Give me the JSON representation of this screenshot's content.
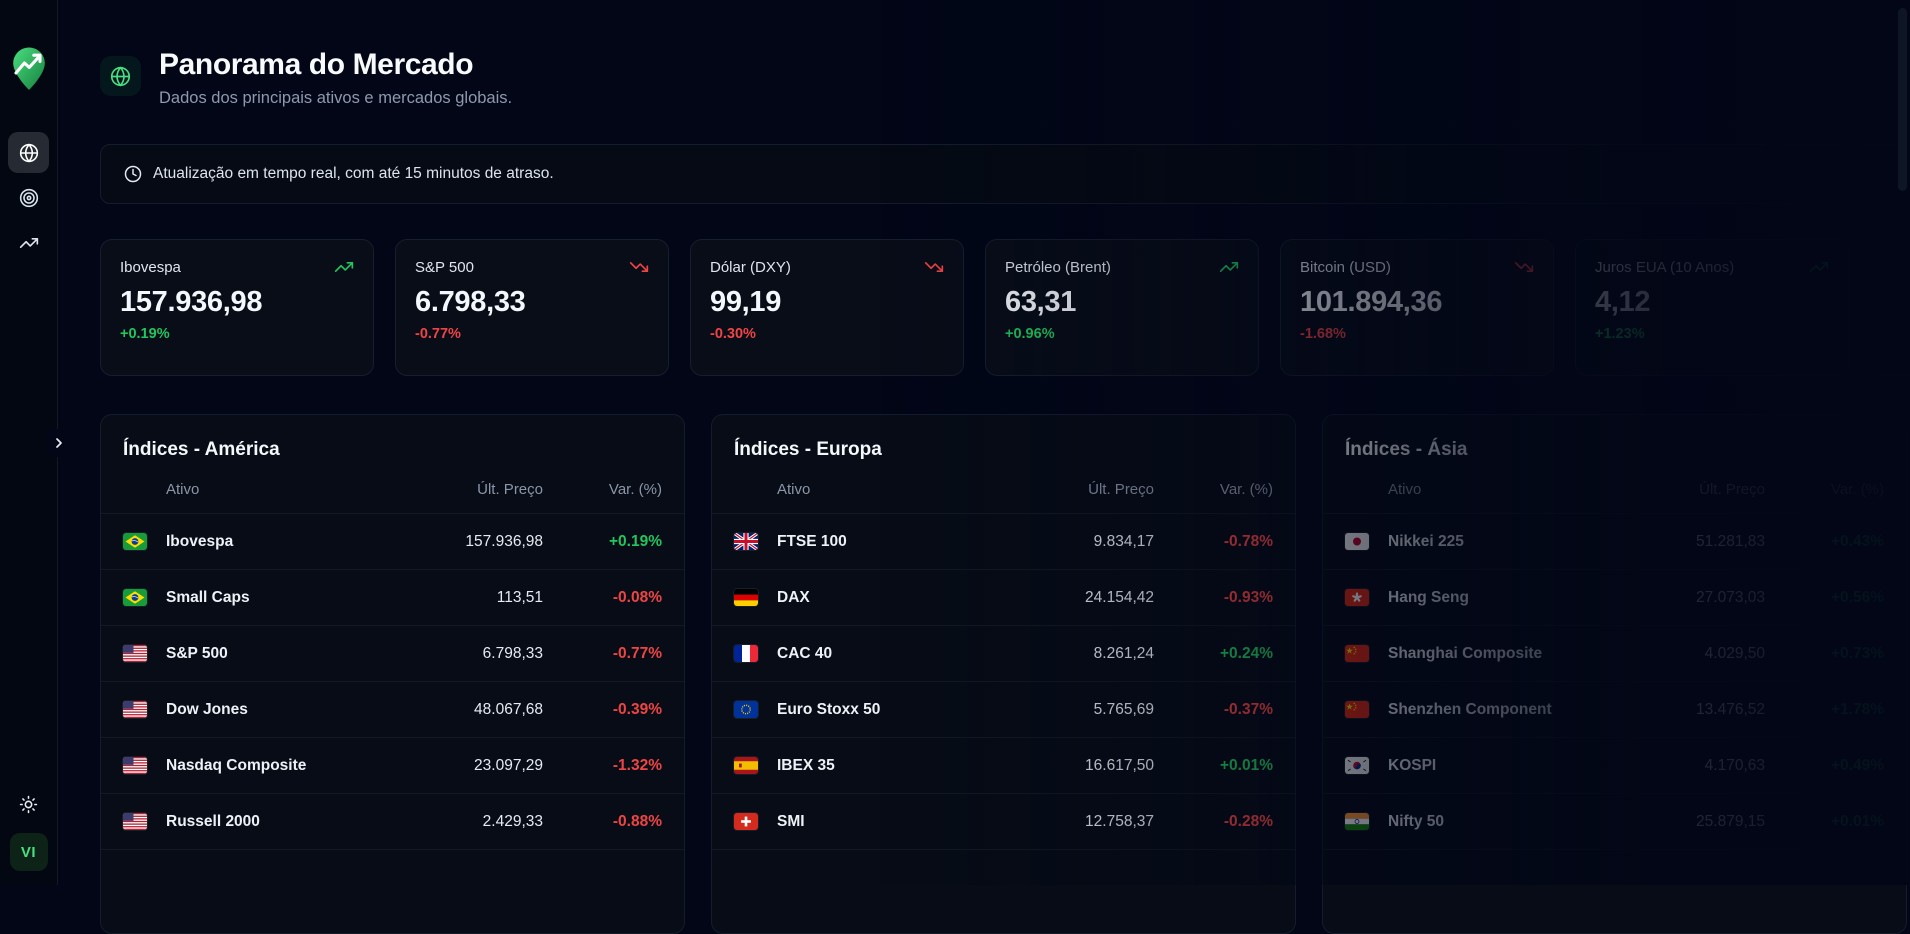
{
  "sidebar": {
    "logo_icon": "trend-pin-logo",
    "nav_items": [
      {
        "name": "globe",
        "active": true
      },
      {
        "name": "target",
        "active": false
      },
      {
        "name": "trending-up",
        "active": false
      }
    ],
    "collapse_icon": "chevron-right",
    "theme_icon": "sun",
    "avatar_label": "VI"
  },
  "header": {
    "icon": "globe-icon",
    "title": "Panorama do Mercado",
    "subtitle": "Dados dos principais ativos e mercados globais."
  },
  "notice": {
    "icon": "clock-icon",
    "text": "Atualização em tempo real, com até 15 minutos de atraso."
  },
  "summary_cards": [
    {
      "title": "Ibovespa",
      "value": "157.936,98",
      "change": "+0.19%",
      "direction": "up"
    },
    {
      "title": "S&P 500",
      "value": "6.798,33",
      "change": "-0.77%",
      "direction": "down"
    },
    {
      "title": "Dólar (DXY)",
      "value": "99,19",
      "change": "-0.30%",
      "direction": "down"
    },
    {
      "title": "Petróleo (Brent)",
      "value": "63,31",
      "change": "+0.96%",
      "direction": "up"
    },
    {
      "title": "Bitcoin (USD)",
      "value": "101.894,36",
      "change": "-1.68%",
      "direction": "down"
    },
    {
      "title": "Juros EUA (10 Anos)",
      "value": "4,12",
      "change": "+1.23%",
      "direction": "up"
    }
  ],
  "tables": [
    {
      "title": "Índices - América",
      "columns": [
        "Ativo",
        "Últ. Preço",
        "Var. (%)"
      ],
      "rows": [
        {
          "flag": "br",
          "name": "Ibovespa",
          "price": "157.936,98",
          "change": "+0.19%",
          "direction": "up"
        },
        {
          "flag": "br",
          "name": "Small Caps",
          "price": "113,51",
          "change": "-0.08%",
          "direction": "down"
        },
        {
          "flag": "us",
          "name": "S&P 500",
          "price": "6.798,33",
          "change": "-0.77%",
          "direction": "down"
        },
        {
          "flag": "us",
          "name": "Dow Jones",
          "price": "48.067,68",
          "change": "-0.39%",
          "direction": "down"
        },
        {
          "flag": "us",
          "name": "Nasdaq Composite",
          "price": "23.097,29",
          "change": "-1.32%",
          "direction": "down"
        },
        {
          "flag": "us",
          "name": "Russell 2000",
          "price": "2.429,33",
          "change": "-0.88%",
          "direction": "down"
        }
      ]
    },
    {
      "title": "Índices - Europa",
      "columns": [
        "Ativo",
        "Últ. Preço",
        "Var. (%)"
      ],
      "rows": [
        {
          "flag": "gb",
          "name": "FTSE 100",
          "price": "9.834,17",
          "change": "-0.78%",
          "direction": "down"
        },
        {
          "flag": "de",
          "name": "DAX",
          "price": "24.154,42",
          "change": "-0.93%",
          "direction": "down"
        },
        {
          "flag": "fr",
          "name": "CAC 40",
          "price": "8.261,24",
          "change": "+0.24%",
          "direction": "up"
        },
        {
          "flag": "eu",
          "name": "Euro Stoxx 50",
          "price": "5.765,69",
          "change": "-0.37%",
          "direction": "down"
        },
        {
          "flag": "es",
          "name": "IBEX 35",
          "price": "16.617,50",
          "change": "+0.01%",
          "direction": "up"
        },
        {
          "flag": "ch",
          "name": "SMI",
          "price": "12.758,37",
          "change": "-0.28%",
          "direction": "down"
        }
      ]
    },
    {
      "title": "Índices - Ásia",
      "columns": [
        "Ativo",
        "Últ. Preço",
        "Var. (%)"
      ],
      "rows": [
        {
          "flag": "jp",
          "name": "Nikkei 225",
          "price": "51.281,83",
          "change": "+0.43%",
          "direction": "up"
        },
        {
          "flag": "hk",
          "name": "Hang Seng",
          "price": "27.073,03",
          "change": "+0.56%",
          "direction": "up"
        },
        {
          "flag": "cn",
          "name": "Shanghai Composite",
          "price": "4.029,50",
          "change": "+0.73%",
          "direction": "up"
        },
        {
          "flag": "cn",
          "name": "Shenzhen Component",
          "price": "13.476,52",
          "change": "+1.78%",
          "direction": "up"
        },
        {
          "flag": "kr",
          "name": "KOSPI",
          "price": "4.170,63",
          "change": "+0.49%",
          "direction": "up"
        },
        {
          "flag": "in",
          "name": "Nifty 50",
          "price": "25.879,15",
          "change": "+0.01%",
          "direction": "up"
        }
      ]
    }
  ],
  "colors": {
    "positive": "#22c55e",
    "negative": "#ef4444",
    "accent": "#4ade80",
    "background": "#020617"
  }
}
